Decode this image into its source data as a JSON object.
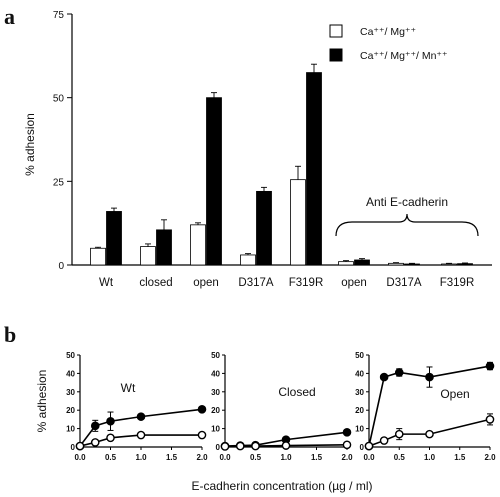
{
  "figure": {
    "panel_a_label": "a",
    "panel_b_label": "b",
    "xlabel_b": "E-cadherin concentration (µg / ml)"
  },
  "chart_data": [
    {
      "type": "bar",
      "panel": "a",
      "categories": [
        "Wt",
        "closed",
        "open",
        "D317A",
        "F319R",
        "open",
        "D317A",
        "F319R"
      ],
      "group_label": "Anti E-cadherin",
      "ylabel": "% adhesion",
      "ylim": [
        0,
        75
      ],
      "yticks": [
        0,
        25,
        50,
        75
      ],
      "legend_position": "top-right",
      "series": [
        {
          "name": "Ca⁺⁺/ Mg⁺⁺",
          "fill": "#ffffff",
          "values": [
            5,
            5.5,
            12,
            3,
            25.5,
            1,
            0.5,
            0.3
          ],
          "errors": [
            0.3,
            0.8,
            0.6,
            0.4,
            4,
            0.3,
            0.2,
            0.2
          ]
        },
        {
          "name": "Ca⁺⁺/ Mg⁺⁺/ Mn⁺⁺",
          "fill": "#000000",
          "values": [
            16,
            10.5,
            50,
            22,
            57.5,
            1.5,
            0.3,
            0.4
          ],
          "errors": [
            1,
            3,
            1.5,
            1.2,
            2.5,
            0.4,
            0.2,
            0.2
          ]
        }
      ]
    },
    {
      "type": "line",
      "panel": "b",
      "title": "Wt",
      "ylabel": "% adhesion",
      "xlabel": "E-cadherin concentration (µg / ml)",
      "xlim": [
        0,
        2
      ],
      "ylim": [
        0,
        50
      ],
      "xticks": [
        "0.0",
        "0.5",
        "1.0",
        "1.5",
        "2.0"
      ],
      "yticks": [
        "0",
        "10",
        "20",
        "30",
        "40",
        "50"
      ],
      "series": [
        {
          "marker": "filled",
          "x": [
            0,
            0.25,
            0.5,
            1,
            2
          ],
          "y": [
            0.5,
            11.5,
            14,
            16.5,
            20.5
          ],
          "err": [
            0,
            3,
            5,
            1,
            1
          ]
        },
        {
          "marker": "open",
          "x": [
            0,
            0.25,
            0.5,
            1,
            2
          ],
          "y": [
            0.5,
            2.5,
            5,
            6.5,
            6.5
          ],
          "err": [
            0,
            1,
            1,
            1,
            1
          ]
        }
      ]
    },
    {
      "type": "line",
      "panel": "b",
      "title": "Closed",
      "xlim": [
        0,
        2
      ],
      "ylim": [
        0,
        50
      ],
      "xticks": [
        "0.0",
        "0.5",
        "1.0",
        "1.5",
        "2.0"
      ],
      "yticks": [
        "0",
        "10",
        "20",
        "30",
        "40",
        "50"
      ],
      "series": [
        {
          "marker": "filled",
          "x": [
            0,
            0.25,
            0.5,
            1,
            2
          ],
          "y": [
            0.5,
            0.8,
            1,
            4,
            8
          ],
          "err": [
            0,
            0,
            0,
            0,
            0
          ]
        },
        {
          "marker": "open",
          "x": [
            0,
            0.25,
            0.5,
            1,
            2
          ],
          "y": [
            0.3,
            0.5,
            0.5,
            0.8,
            1.2
          ],
          "err": [
            0,
            0,
            0,
            0,
            0
          ]
        }
      ]
    },
    {
      "type": "line",
      "panel": "b",
      "title": "Open",
      "xlim": [
        0,
        2
      ],
      "ylim": [
        0,
        50
      ],
      "xticks": [
        "0.0",
        "0.5",
        "1.0",
        "1.5",
        "2.0"
      ],
      "yticks": [
        "0",
        "10",
        "20",
        "30",
        "40",
        "50"
      ],
      "series": [
        {
          "marker": "filled",
          "x": [
            0,
            0.25,
            0.5,
            1,
            2
          ],
          "y": [
            0.5,
            38,
            40.5,
            38,
            44
          ],
          "err": [
            0,
            1,
            2,
            5.5,
            2
          ]
        },
        {
          "marker": "open",
          "x": [
            0,
            0.25,
            0.5,
            1,
            2
          ],
          "y": [
            0.5,
            3.5,
            7,
            7,
            15
          ],
          "err": [
            0,
            1,
            3,
            1,
            3
          ]
        }
      ]
    }
  ]
}
